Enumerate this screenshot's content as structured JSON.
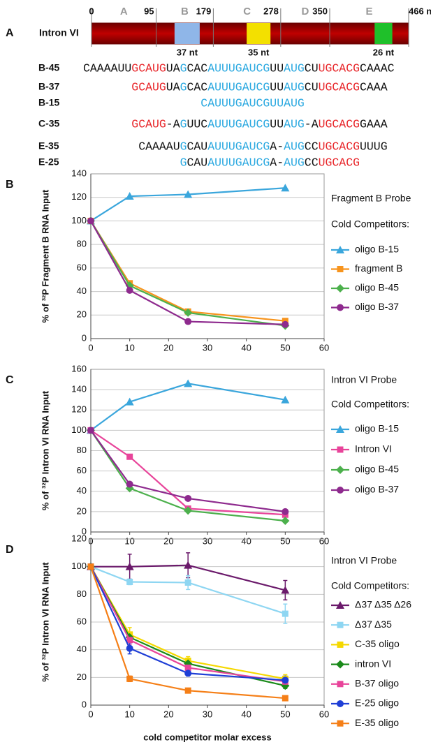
{
  "panel_a": {
    "label": "A",
    "name": "Intron VI",
    "scale": {
      "lim": [
        0,
        466
      ],
      "ticks": [
        0,
        95,
        179,
        278,
        350,
        {
          "value": 466,
          "label": "466 nt"
        }
      ]
    },
    "regions": [
      "A",
      "B",
      "C",
      "D",
      "E"
    ],
    "boxes": [
      {
        "start": 122,
        "end": 159,
        "color": "#8fb6e8",
        "label": "37 nt"
      },
      {
        "start": 228,
        "end": 263,
        "color": "#f3e000",
        "label": "35 nt"
      },
      {
        "start": 416,
        "end": 442,
        "color": "#1fc02a",
        "label": "26 nt"
      }
    ],
    "sequences": [
      {
        "name": "B-45",
        "segments": [
          {
            "text": "CAAAAUU",
            "color": "#111111"
          },
          {
            "text": "GCAUG",
            "color": "#e8262a"
          },
          {
            "text": "UA",
            "color": "#111111"
          },
          {
            "text": "G",
            "color": "#29a8e0"
          },
          {
            "text": "CAC",
            "color": "#111111"
          },
          {
            "text": "AUUUGAUCG",
            "color": "#29a8e0"
          },
          {
            "text": "UU",
            "color": "#111111"
          },
          {
            "text": "AUG",
            "color": "#29a8e0"
          },
          {
            "text": "CU",
            "color": "#111111"
          },
          {
            "text": "UGCACG",
            "color": "#e8262a"
          },
          {
            "text": "CAAAC",
            "color": "#111111"
          }
        ]
      },
      {
        "name": "B-37",
        "segments": [
          {
            "text": "GCAUG",
            "color": "#e8262a"
          },
          {
            "text": "UA",
            "color": "#111111"
          },
          {
            "text": "G",
            "color": "#29a8e0"
          },
          {
            "text": "CAC",
            "color": "#111111"
          },
          {
            "text": "AUUUGAUCG",
            "color": "#29a8e0"
          },
          {
            "text": "UU",
            "color": "#111111"
          },
          {
            "text": "AUG",
            "color": "#29a8e0"
          },
          {
            "text": "CU",
            "color": "#111111"
          },
          {
            "text": "UGCACG",
            "color": "#e8262a"
          },
          {
            "text": "CAAA",
            "color": "#111111"
          }
        ]
      },
      {
        "name": "B-15",
        "segments": [
          {
            "text": "CAUUUGAUCG",
            "color": "#29a8e0"
          },
          {
            "text": "UU",
            "color": "#29a8e0"
          },
          {
            "text": "AUG",
            "color": "#29a8e0"
          }
        ]
      },
      {
        "name": "C-35",
        "segments": [
          {
            "text": "GCAUG",
            "color": "#e8262a"
          },
          {
            "text": "-A",
            "color": "#111111"
          },
          {
            "text": "G",
            "color": "#29a8e0"
          },
          {
            "text": "UUC",
            "color": "#111111"
          },
          {
            "text": "AUUUGAUCG",
            "color": "#29a8e0"
          },
          {
            "text": "UU",
            "color": "#111111"
          },
          {
            "text": "AUG",
            "color": "#29a8e0"
          },
          {
            "text": "-A",
            "color": "#111111"
          },
          {
            "text": "UGCACG",
            "color": "#e8262a"
          },
          {
            "text": "GAAA",
            "color": "#111111"
          }
        ]
      },
      {
        "name": "E-35",
        "segments": [
          {
            "text": "CAAAAU",
            "color": "#111111"
          },
          {
            "text": "G",
            "color": "#29a8e0"
          },
          {
            "text": "CAU",
            "color": "#111111"
          },
          {
            "text": "AUUUGAUCG",
            "color": "#29a8e0"
          },
          {
            "text": "A-",
            "color": "#111111"
          },
          {
            "text": "AUG",
            "color": "#29a8e0"
          },
          {
            "text": "CC",
            "color": "#111111"
          },
          {
            "text": "UGCACG",
            "color": "#e8262a"
          },
          {
            "text": "UUUG",
            "color": "#111111"
          }
        ]
      },
      {
        "name": "E-25",
        "segments": [
          {
            "text": "G",
            "color": "#29a8e0"
          },
          {
            "text": "CAU",
            "color": "#111111"
          },
          {
            "text": "AUUUGAUCG",
            "color": "#29a8e0"
          },
          {
            "text": "A-",
            "color": "#111111"
          },
          {
            "text": "AUG",
            "color": "#29a8e0"
          },
          {
            "text": "CC",
            "color": "#111111"
          },
          {
            "text": "UGCACG",
            "color": "#e8262a"
          }
        ]
      }
    ]
  },
  "chart_data": [
    {
      "type": "line",
      "label": "B",
      "y_label": "% of ³²P Fragment B RNA Input",
      "legend_title": "Fragment B Probe",
      "legend_subtitle": "Cold Competitors:",
      "x": [
        0,
        10,
        25,
        50
      ],
      "xlim": [
        0,
        60
      ],
      "xticks": [
        0,
        10,
        20,
        30,
        40,
        50,
        60
      ],
      "ylim": [
        0,
        140
      ],
      "yticks": [
        0,
        20,
        40,
        60,
        80,
        100,
        120,
        140
      ],
      "grid": true,
      "series": [
        {
          "name": "oligo B-15",
          "color": "#3aa6dc",
          "marker": "triangle",
          "values": [
            100,
            121,
            122.5,
            128
          ]
        },
        {
          "name": "fragment B",
          "color": "#f7941d",
          "marker": "square",
          "values": [
            100,
            47,
            23,
            15
          ]
        },
        {
          "name": "oligo B-45",
          "color": "#4cb04c",
          "marker": "diamond",
          "values": [
            100,
            45,
            22,
            11
          ]
        },
        {
          "name": "oligo B-37",
          "color": "#8e2a8e",
          "marker": "circle",
          "values": [
            100,
            41,
            14.5,
            12
          ]
        }
      ]
    },
    {
      "type": "line",
      "label": "C",
      "y_label": "% of ³²P Intron VI RNA Input",
      "legend_title": "Intron VI Probe",
      "legend_subtitle": "Cold Competitors:",
      "x": [
        0,
        10,
        25,
        50
      ],
      "xlim": [
        0,
        60
      ],
      "xticks": [
        0,
        10,
        20,
        30,
        40,
        50,
        60
      ],
      "ylim": [
        0,
        160
      ],
      "yticks": [
        0,
        20,
        40,
        60,
        80,
        100,
        120,
        140,
        160
      ],
      "grid": true,
      "series": [
        {
          "name": "oligo B-15",
          "color": "#3aa6dc",
          "marker": "triangle",
          "values": [
            100,
            128,
            146,
            130
          ]
        },
        {
          "name": "Intron VI",
          "color": "#e8449a",
          "marker": "square",
          "values": [
            100,
            74,
            23,
            17
          ]
        },
        {
          "name": "oligo B-45",
          "color": "#4cb04c",
          "marker": "diamond",
          "values": [
            100,
            43,
            21,
            11
          ]
        },
        {
          "name": "oligo B-37",
          "color": "#8e2a8e",
          "marker": "circle",
          "values": [
            100,
            47,
            33,
            20
          ]
        }
      ]
    },
    {
      "type": "line",
      "label": "D",
      "y_label": "% of ³²P Intron VI RNA Input",
      "x_label": "cold competitor molar excess",
      "legend_title": "Intron VI Probe",
      "legend_subtitle": "Cold Competitors:",
      "x": [
        0,
        10,
        25,
        50
      ],
      "xlim": [
        0,
        60
      ],
      "xticks": [
        0,
        10,
        20,
        30,
        40,
        50,
        60
      ],
      "ylim": [
        0,
        120
      ],
      "yticks": [
        0,
        20,
        40,
        60,
        80,
        100,
        120
      ],
      "grid": true,
      "series": [
        {
          "name": "Δ37 Δ35 Δ26",
          "color": "#6b1a6b",
          "marker": "triangle",
          "values": [
            100,
            100,
            101,
            83
          ],
          "errors": [
            0,
            9,
            9,
            7
          ]
        },
        {
          "name": "Δ37 Δ35",
          "color": "#8ed6f2",
          "marker": "square",
          "values": [
            100,
            89,
            88.5,
            66
          ],
          "errors": [
            0,
            2,
            5,
            7
          ]
        },
        {
          "name": "C-35 oligo",
          "color": "#f5d800",
          "marker": "square",
          "values": [
            100,
            51,
            32,
            19
          ],
          "errors": [
            0,
            5,
            3,
            3
          ]
        },
        {
          "name": "intron VI",
          "color": "#1a8a1a",
          "marker": "diamond",
          "values": [
            100,
            49,
            30,
            14
          ],
          "errors": [
            0,
            3,
            2,
            2
          ]
        },
        {
          "name": "B-37 oligo",
          "color": "#e8449a",
          "marker": "square",
          "values": [
            100,
            47,
            27,
            17
          ],
          "errors": [
            0,
            3,
            2,
            2
          ]
        },
        {
          "name": "E-25 oligo",
          "color": "#1f3fd6",
          "marker": "circle",
          "values": [
            100,
            41,
            23,
            18
          ],
          "errors": [
            0,
            4,
            2,
            3
          ]
        },
        {
          "name": "E-35 oligo",
          "color": "#f57f17",
          "marker": "square",
          "values": [
            100,
            19,
            10.5,
            5
          ],
          "errors": [
            0,
            2,
            1,
            1
          ]
        }
      ]
    }
  ]
}
